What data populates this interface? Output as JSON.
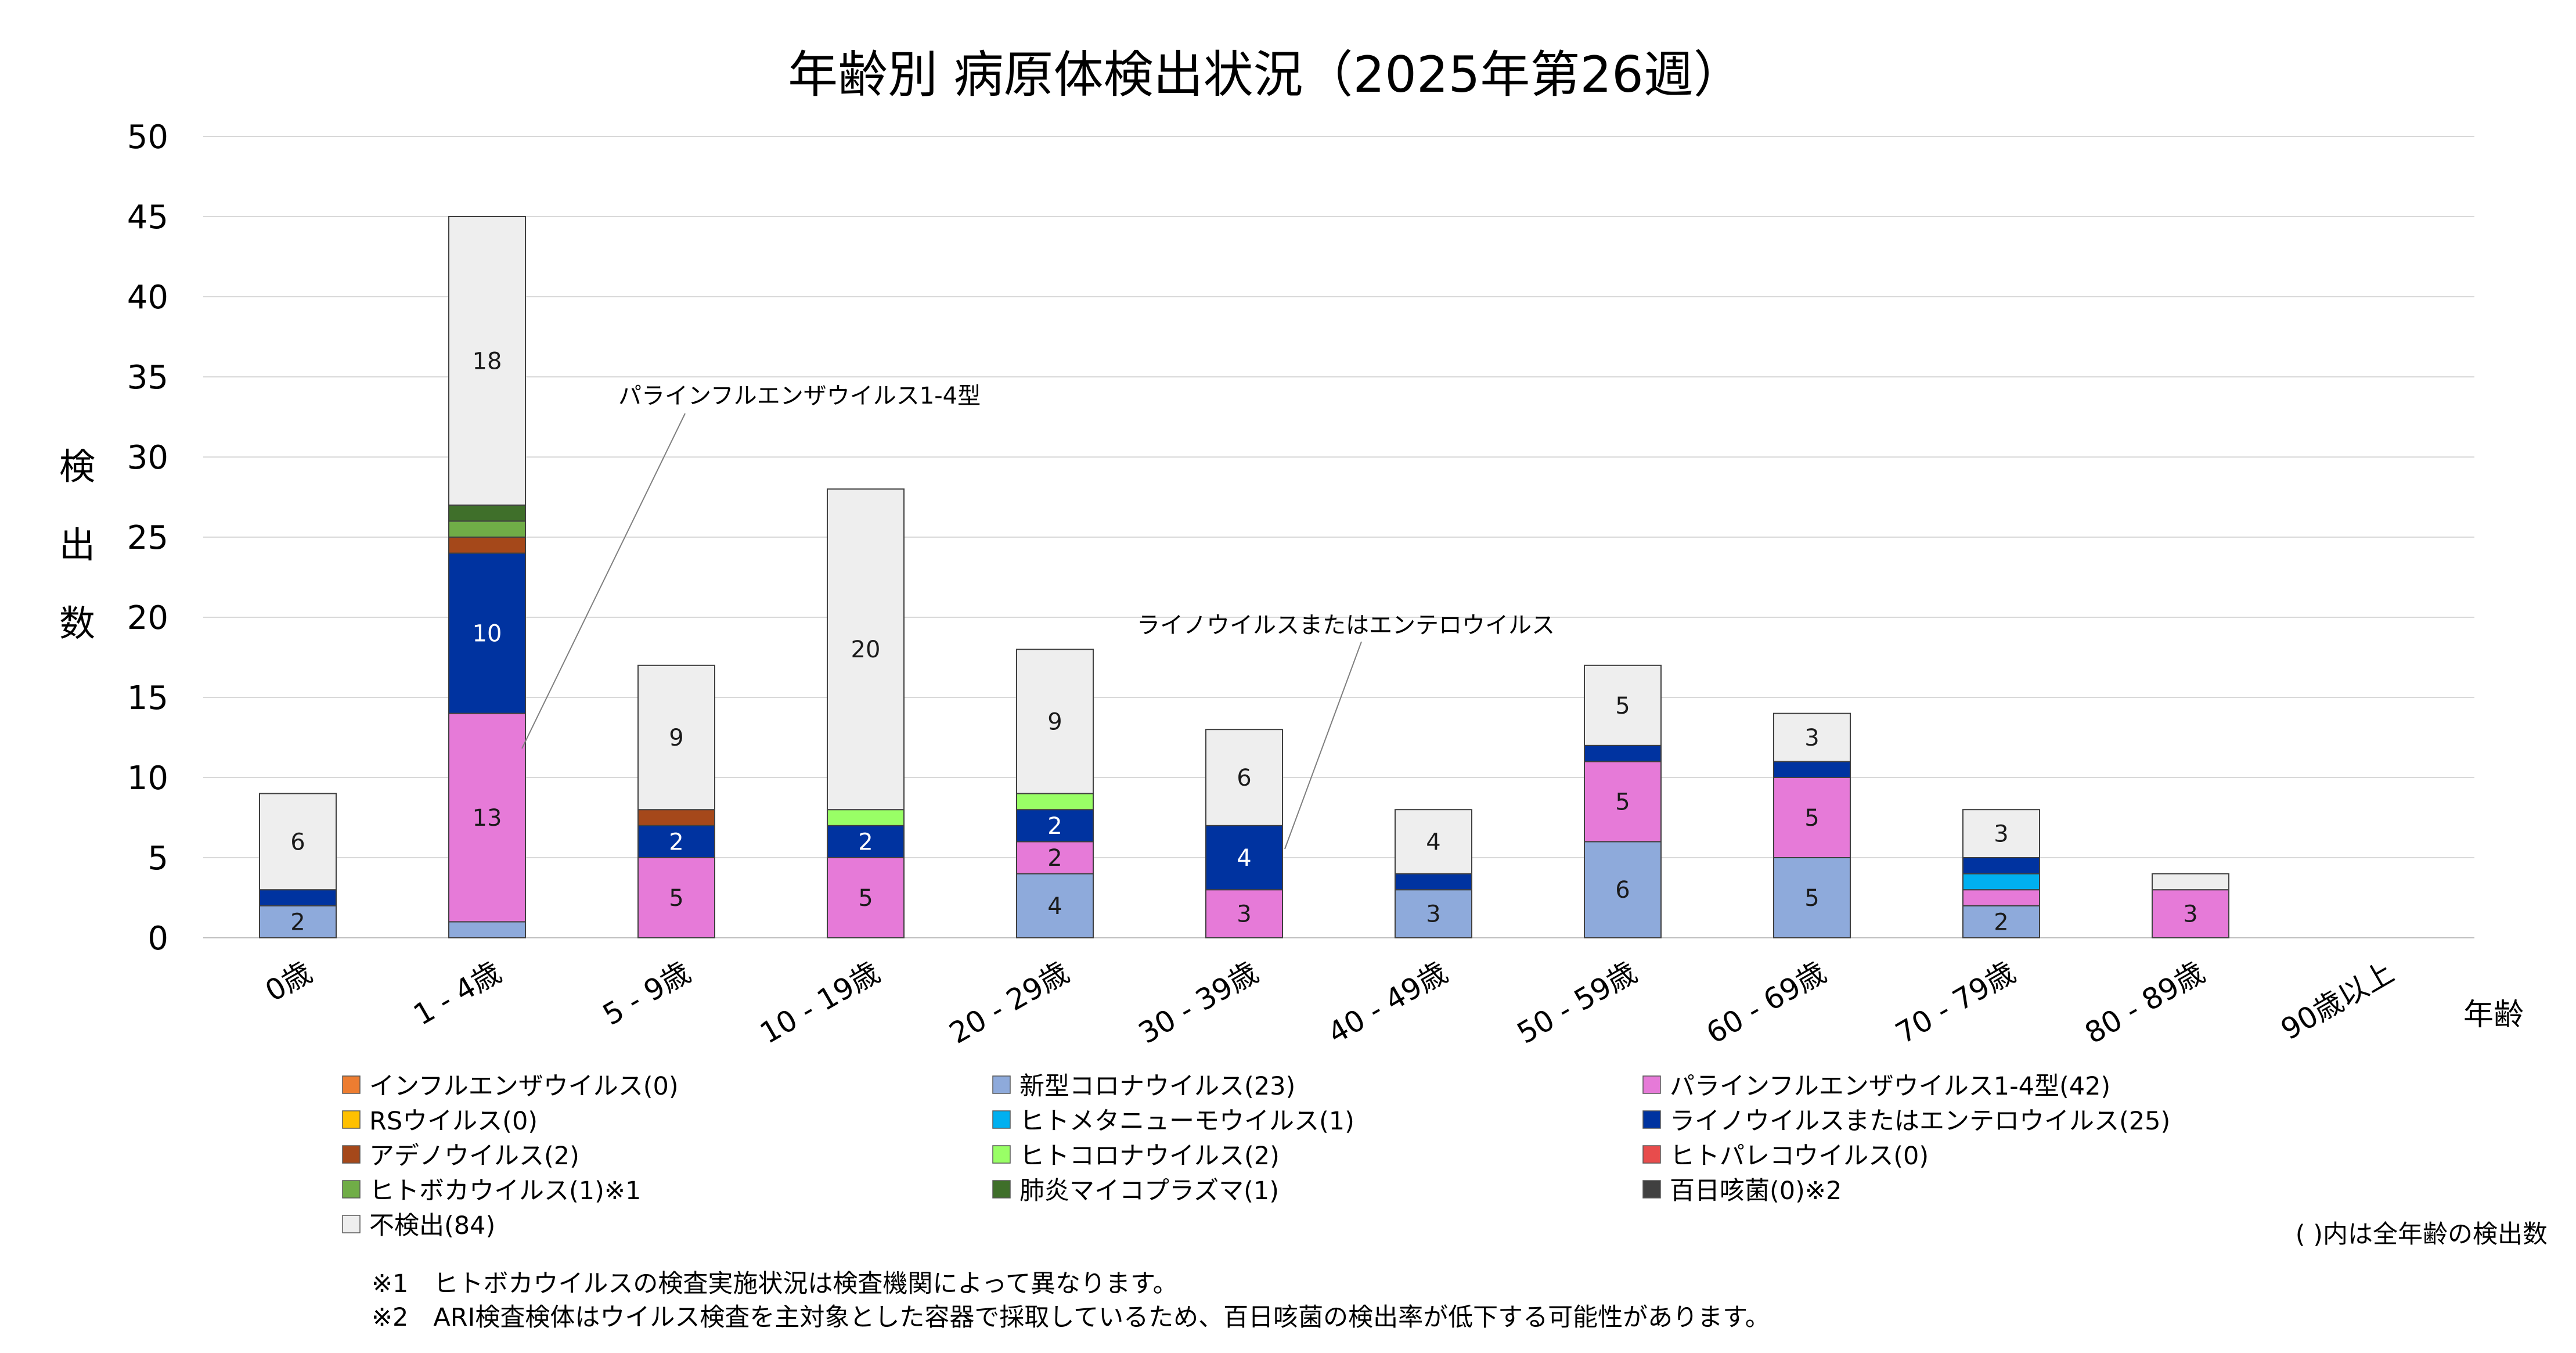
{
  "chart_data": {
    "type": "bar",
    "stacked": true,
    "title": "年齢別 病原体検出状況（2025年第26週）",
    "ylabel": "検出数",
    "xlabel": "年齢",
    "ylim": [
      0,
      50
    ],
    "yticks": [
      0,
      5,
      10,
      15,
      20,
      25,
      30,
      35,
      40,
      45,
      50
    ],
    "grid": true,
    "legend_position": "bottom",
    "categories": [
      "0歳",
      "1 - 4歳",
      "5 - 9歳",
      "10 - 19歳",
      "20 - 29歳",
      "30 - 39歳",
      "40 - 49歳",
      "50 - 59歳",
      "60 - 69歳",
      "70 - 79歳",
      "80 - 89歳",
      "90歳以上"
    ],
    "series": [
      {
        "name": "新型コロナウイルス(23)",
        "color": "#8eaadb",
        "values": [
          2,
          1,
          0,
          0,
          4,
          0,
          3,
          6,
          5,
          2,
          0,
          0
        ]
      },
      {
        "name": "パラインフルエンザウイルス1-4型(42)",
        "color": "#e67ad8",
        "values": [
          0,
          13,
          5,
          5,
          2,
          3,
          0,
          5,
          5,
          1,
          3,
          0
        ]
      },
      {
        "name": "ヒトメタニューモウイルス(1)",
        "color": "#00b0f0",
        "values": [
          0,
          0,
          0,
          0,
          0,
          0,
          0,
          0,
          0,
          1,
          0,
          0
        ]
      },
      {
        "name": "ライノウイルスまたはエンテロウイルス(25)",
        "color": "#0033a0",
        "values": [
          1,
          10,
          2,
          2,
          2,
          4,
          1,
          1,
          1,
          1,
          0,
          0
        ]
      },
      {
        "name": "アデノウイルス(2)",
        "color": "#a5481a",
        "values": [
          0,
          1,
          1,
          0,
          0,
          0,
          0,
          0,
          0,
          0,
          0,
          0
        ]
      },
      {
        "name": "ヒトボカウイルス(1)※1",
        "color": "#70ad47",
        "values": [
          0,
          1,
          0,
          0,
          0,
          0,
          0,
          0,
          0,
          0,
          0,
          0
        ]
      },
      {
        "name": "肺炎マイコプラズマ(1)",
        "color": "#3f6f2a",
        "values": [
          0,
          1,
          0,
          0,
          0,
          0,
          0,
          0,
          0,
          0,
          0,
          0
        ]
      },
      {
        "name": "ヒトコロナウイルス(2)",
        "color": "#99ff66",
        "values": [
          0,
          0,
          0,
          1,
          1,
          0,
          0,
          0,
          0,
          0,
          0,
          0
        ]
      },
      {
        "name": "不検出(84)",
        "color": "#eeeeee",
        "values": [
          6,
          18,
          9,
          20,
          9,
          6,
          4,
          5,
          3,
          3,
          1,
          0
        ]
      }
    ],
    "data_labels": [
      {
        "category": "0歳",
        "series": "新型コロナウイルス(23)",
        "text": "2"
      },
      {
        "category": "0歳",
        "series": "不検出(84)",
        "text": "6"
      },
      {
        "category": "1 - 4歳",
        "series": "パラインフルエンザウイルス1-4型(42)",
        "text": "13"
      },
      {
        "category": "1 - 4歳",
        "series": "ライノウイルスまたはエンテロウイルス(25)",
        "text": "10"
      },
      {
        "category": "1 - 4歳",
        "series": "不検出(84)",
        "text": "18"
      },
      {
        "category": "5 - 9歳",
        "series": "パラインフルエンザウイルス1-4型(42)",
        "text": "5"
      },
      {
        "category": "5 - 9歳",
        "series": "ライノウイルスまたはエンテロウイルス(25)",
        "text": "2"
      },
      {
        "category": "5 - 9歳",
        "series": "不検出(84)",
        "text": "9"
      },
      {
        "category": "10 - 19歳",
        "series": "パラインフルエンザウイルス1-4型(42)",
        "text": "5"
      },
      {
        "category": "10 - 19歳",
        "series": "ライノウイルスまたはエンテロウイルス(25)",
        "text": "2"
      },
      {
        "category": "10 - 19歳",
        "series": "不検出(84)",
        "text": "20"
      },
      {
        "category": "20 - 29歳",
        "series": "新型コロナウイルス(23)",
        "text": "4"
      },
      {
        "category": "20 - 29歳",
        "series": "パラインフルエンザウイルス1-4型(42)",
        "text": "2"
      },
      {
        "category": "20 - 29歳",
        "series": "ライノウイルスまたはエンテロウイルス(25)",
        "text": "2"
      },
      {
        "category": "20 - 29歳",
        "series": "不検出(84)",
        "text": "9"
      },
      {
        "category": "30 - 39歳",
        "series": "パラインフルエンザウイルス1-4型(42)",
        "text": "3"
      },
      {
        "category": "30 - 39歳",
        "series": "ライノウイルスまたはエンテロウイルス(25)",
        "text": "4"
      },
      {
        "category": "30 - 39歳",
        "series": "不検出(84)",
        "text": "6"
      },
      {
        "category": "40 - 49歳",
        "series": "新型コロナウイルス(23)",
        "text": "3"
      },
      {
        "category": "40 - 49歳",
        "series": "不検出(84)",
        "text": "4"
      },
      {
        "category": "50 - 59歳",
        "series": "新型コロナウイルス(23)",
        "text": "6"
      },
      {
        "category": "50 - 59歳",
        "series": "パラインフルエンザウイルス1-4型(42)",
        "text": "5"
      },
      {
        "category": "50 - 59歳",
        "series": "不検出(84)",
        "text": "5"
      },
      {
        "category": "60 - 69歳",
        "series": "新型コロナウイルス(23)",
        "text": "5"
      },
      {
        "category": "60 - 69歳",
        "series": "パラインフルエンザウイルス1-4型(42)",
        "text": "5"
      },
      {
        "category": "60 - 69歳",
        "series": "不検出(84)",
        "text": "3"
      },
      {
        "category": "70 - 79歳",
        "series": "新型コロナウイルス(23)",
        "text": "2"
      },
      {
        "category": "70 - 79歳",
        "series": "不検出(84)",
        "text": "3"
      },
      {
        "category": "80 - 89歳",
        "series": "パラインフルエンザウイルス1-4型(42)",
        "text": "3"
      }
    ],
    "annotations": [
      {
        "text": "パラインフルエンザウイルス1-4型",
        "category": "1 - 4歳",
        "value": 10
      },
      {
        "text": "ライノウイルスまたはエンテロウイルス",
        "category": "30 - 39歳",
        "value": 5
      }
    ],
    "legend": [
      [
        "インフルエンザウイルス(0)",
        "#ed7d31"
      ],
      [
        "新型コロナウイルス(23)",
        "#8eaadb"
      ],
      [
        "パラインフルエンザウイルス1-4型(42)",
        "#e67ad8"
      ],
      [
        "RSウイルス(0)",
        "#ffc000"
      ],
      [
        "ヒトメタニューモウイルス(1)",
        "#00b0f0"
      ],
      [
        "ライノウイルスまたはエンテロウイルス(25)",
        "#0033a0"
      ],
      [
        "アデノウイルス(2)",
        "#a5481a"
      ],
      [
        "ヒトコロナウイルス(2)",
        "#99ff66"
      ],
      [
        "ヒトパレコウイルス(0)",
        "#e84c4c"
      ],
      [
        "ヒトボカウイルス(1)※1",
        "#70ad47"
      ],
      [
        "肺炎マイコプラズマ(1)",
        "#3f6f2a"
      ],
      [
        "百日咳菌(0)※2",
        "#404040"
      ],
      [
        "不検出(84)",
        "#eeeeee"
      ]
    ],
    "legend_note": "( )内は全年齢の検出数",
    "footnotes": [
      "※1　ヒトボカウイルスの検査実施状況は検査機関によって異なります。",
      "※2　ARI検査検体はウイルス検査を主対象とした容器で採取しているため、百日咳菌の検出率が低下する可能性があります。"
    ]
  }
}
